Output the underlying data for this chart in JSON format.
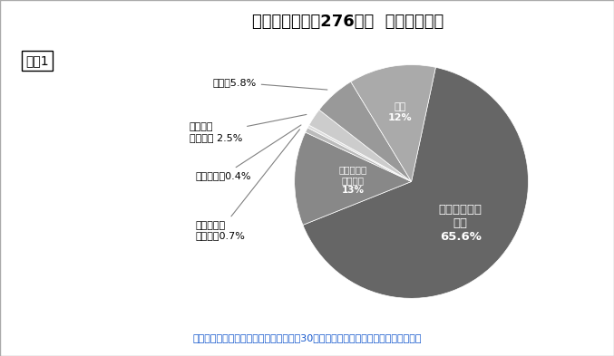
{
  "title": "厚生労働省報告276事例  事故状況分類",
  "label_box": "資料1",
  "footnote": "消費者庁への報告：重大事例として概ね30日以内の入院を伴うものとして取り扱い",
  "slices": [
    {
      "label": "転倒・転落・\n滑落",
      "pct_display": "65.6%",
      "value": 65.6,
      "color": "#666666"
    },
    {
      "label": "誤嚥・誤飲\nむせこみ",
      "pct_display": "13%",
      "value": 13.0,
      "color": "#888888"
    },
    {
      "label": "ドアに体を\n挟まれた",
      "pct_display": "0.7%",
      "value": 0.7,
      "color": "#bbbbbb"
    },
    {
      "label": "盗食・異食",
      "pct_display": "0.4%",
      "value": 0.4,
      "color": "#dddddd"
    },
    {
      "label": "送迎中の\n交通事故",
      "pct_display": "2.5%",
      "value": 2.5,
      "color": "#cccccc"
    },
    {
      "label": "その他",
      "pct_display": "5.8%",
      "value": 5.8,
      "color": "#999999"
    },
    {
      "label": "不明",
      "pct_display": "12%",
      "value": 12.0,
      "color": "#aaaaaa"
    }
  ],
  "background_color": "#ffffff",
  "border_color": "#aaaaaa",
  "title_fontsize": 13,
  "footnote_fontsize": 8,
  "footnote_color": "#1155cc"
}
